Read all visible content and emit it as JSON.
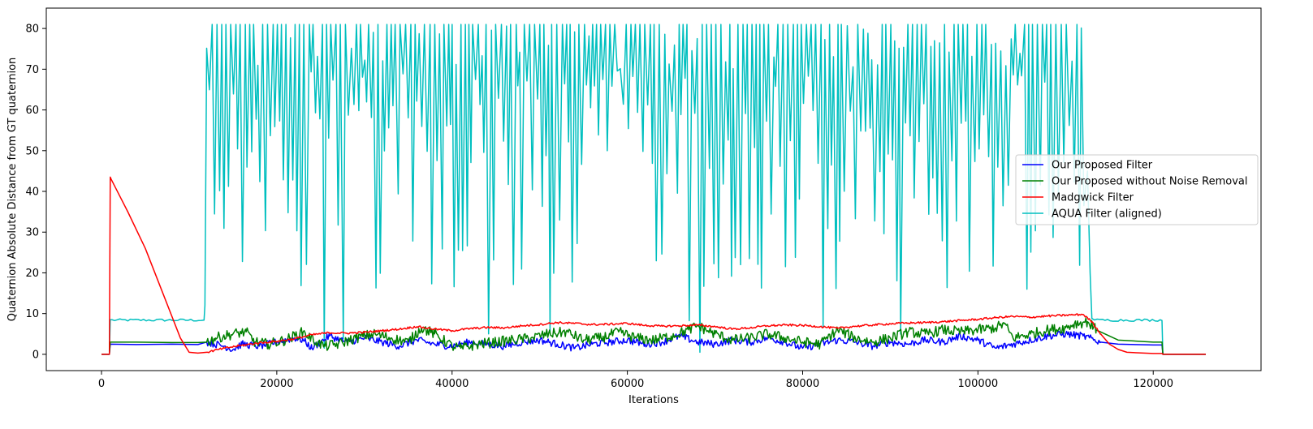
{
  "chart_data": {
    "type": "line",
    "title": "",
    "xlabel": "Iterations",
    "ylabel": "Quaternion Absolute Distance from GT quaternion",
    "xlim": [
      -6300,
      132300
    ],
    "ylim": [
      -4,
      85
    ],
    "xticks": [
      0,
      20000,
      40000,
      60000,
      80000,
      100000,
      120000
    ],
    "xtick_labels": [
      "0",
      "20000",
      "40000",
      "60000",
      "80000",
      "100000",
      "120000"
    ],
    "yticks": [
      0,
      10,
      20,
      30,
      40,
      50,
      60,
      70,
      80
    ],
    "ytick_labels": [
      "0",
      "10",
      "20",
      "30",
      "40",
      "50",
      "60",
      "70",
      "80"
    ],
    "grid": false,
    "legend_position": "center-right",
    "series": [
      {
        "name": "Our Proposed Filter",
        "color": "#0000ff",
        "x": [
          0,
          900,
          1000,
          4000,
          8000,
          11000,
          12000,
          14000,
          15000,
          16000,
          18000,
          20000,
          22000,
          23000,
          24000,
          25000,
          26000,
          28000,
          30000,
          32000,
          34000,
          36000,
          38000,
          40000,
          42000,
          44000,
          46000,
          48000,
          50000,
          52000,
          54000,
          56000,
          58000,
          60000,
          62000,
          64000,
          66000,
          68000,
          70000,
          72000,
          74000,
          76000,
          78000,
          80000,
          82000,
          84000,
          86000,
          88000,
          90000,
          92000,
          94000,
          96000,
          98000,
          100000,
          102000,
          104000,
          106000,
          108000,
          110000,
          112000,
          114000,
          116000,
          120000,
          121000,
          121100,
          126000
        ],
        "y": [
          0,
          0,
          2.5,
          2.4,
          2.5,
          2.4,
          3,
          2,
          1.2,
          2.5,
          2,
          3,
          4,
          3.5,
          1.5,
          3,
          4.5,
          3,
          4,
          3,
          2,
          3.5,
          2.5,
          2,
          3,
          2.5,
          2,
          3,
          3.5,
          2.5,
          1.5,
          2.5,
          3,
          3.5,
          2.5,
          3,
          4.5,
          3,
          2.5,
          3.5,
          3,
          4,
          3,
          1.5,
          2.5,
          3.5,
          3,
          2,
          3,
          2.5,
          3.5,
          3,
          4.5,
          3.5,
          1.5,
          2.5,
          3.5,
          4.5,
          5,
          4.5,
          3,
          2.5,
          2.3,
          2.3,
          0,
          0
        ]
      },
      {
        "name": "Our Proposed without Noise Removal",
        "color": "#008000",
        "x": [
          0,
          900,
          1000,
          4000,
          8000,
          11000,
          12000,
          13000,
          15000,
          16500,
          17500,
          19000,
          21000,
          23000,
          24500,
          25500,
          27000,
          29000,
          31000,
          33000,
          35000,
          36500,
          38000,
          40000,
          41000,
          43000,
          45000,
          47000,
          49000,
          51000,
          53000,
          55000,
          57000,
          59000,
          61000,
          63000,
          65000,
          67000,
          68000,
          70000,
          72000,
          74000,
          76000,
          78000,
          80000,
          82000,
          84000,
          86000,
          88000,
          90000,
          92000,
          94000,
          96000,
          98000,
          100000,
          102000,
          103000,
          104000,
          106000,
          108000,
          110000,
          111000,
          112500,
          113500,
          116000,
          120000,
          121000,
          121100,
          126000
        ],
        "y": [
          0,
          0,
          3,
          3,
          2.9,
          2.9,
          3,
          4,
          5,
          5.5,
          3,
          2.5,
          3.5,
          5.5,
          3,
          2,
          2.5,
          4,
          5,
          4,
          3,
          6.5,
          5,
          2,
          1.5,
          2.5,
          3,
          3.5,
          4,
          5,
          5.5,
          3.5,
          4,
          5.5,
          4,
          3.5,
          4.5,
          6,
          7,
          5,
          3.5,
          4,
          5,
          4,
          3,
          2.5,
          6,
          4,
          3,
          4,
          5.5,
          5,
          6,
          5.5,
          6,
          6.5,
          7.5,
          4,
          5,
          6,
          6.5,
          7.5,
          8,
          6,
          3.5,
          3,
          3,
          0,
          0
        ]
      },
      {
        "name": "Madgwick Filter",
        "color": "#ff0000",
        "x": [
          0,
          900,
          1000,
          1100,
          3000,
          5000,
          7000,
          9000,
          10000,
          11000,
          12000,
          14000,
          16000,
          18000,
          20000,
          22000,
          24000,
          26000,
          28000,
          30000,
          32000,
          34000,
          36000,
          38000,
          40000,
          42000,
          44000,
          46000,
          48000,
          50000,
          52000,
          54000,
          56000,
          58000,
          60000,
          62000,
          64000,
          66000,
          68000,
          70000,
          72000,
          74000,
          76000,
          78000,
          80000,
          82000,
          84000,
          86000,
          88000,
          90000,
          92000,
          94000,
          96000,
          98000,
          100000,
          102000,
          104000,
          106000,
          108000,
          110000,
          112000,
          113000,
          114000,
          115000,
          116000,
          117000,
          120000,
          121000,
          121100,
          126000
        ],
        "y": [
          0,
          0,
          43.5,
          43,
          35,
          26,
          15,
          4,
          0.5,
          0.3,
          0.5,
          1.5,
          2.2,
          2.8,
          3.2,
          3.8,
          4.8,
          5.3,
          5.2,
          5.4,
          5.8,
          6.2,
          6.8,
          6.2,
          5.8,
          6.3,
          6.6,
          6.5,
          7,
          7.3,
          7.8,
          7.6,
          7.3,
          7.4,
          7.6,
          7.1,
          6.9,
          7,
          7.2,
          6.8,
          6.2,
          6.5,
          7,
          7.2,
          7.1,
          6.8,
          6.4,
          6.9,
          7.2,
          7.5,
          7.7,
          7.8,
          8,
          8.3,
          8.6,
          9,
          9.3,
          9.1,
          9.4,
          9.6,
          9.8,
          8,
          5,
          2.5,
          1.2,
          0.5,
          0.2,
          0.2,
          0,
          0
        ]
      },
      {
        "name": "AQUA Filter (aligned)",
        "color": "#00bfbf",
        "x": [
          0,
          900,
          1000,
          3000,
          6000,
          9000,
          11000,
          11800,
          12000,
          121000,
          121100,
          126000
        ],
        "y": [
          0,
          0,
          8.5,
          8.3,
          8.4,
          8.5,
          8.3,
          12,
          60,
          8.3,
          0,
          0
        ],
        "note": "Between ~12000 and ~112000 iterations the series oscillates rapidly between roughly 20 and 81 with occasional dips near 0; after ~113000 it returns to ~8.5."
      }
    ]
  }
}
